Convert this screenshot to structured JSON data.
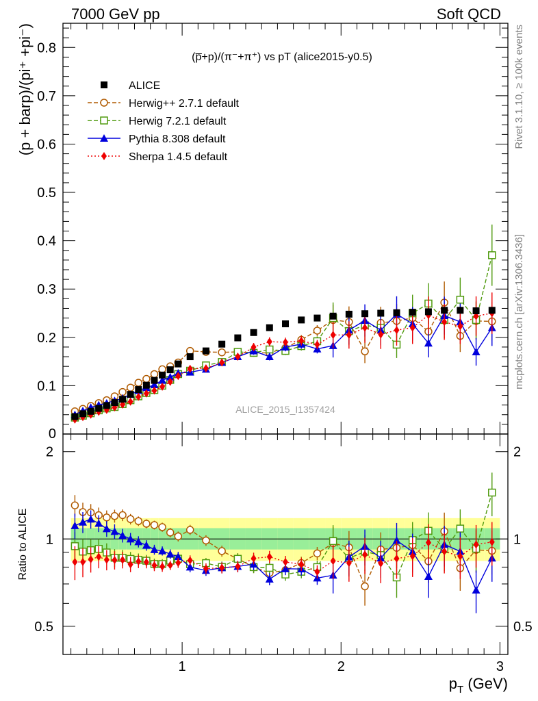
{
  "header": {
    "left": "7000 GeV pp",
    "right": "Soft QCD"
  },
  "side_labels": {
    "rivet": "Rivet 3.1.10, ≥ 100k events",
    "mcplots": "mcplots.cern.ch [arXiv:1306.3436]"
  },
  "chart_data": {
    "type": "scatter",
    "title": "(p̅+p)/(π⁻+π⁺) vs pT (alice2015-y0.5)",
    "watermark": "ALICE_2015_I1357424",
    "xlabel": "p_T (GeV)",
    "ylabel": "(p + barp)/(pi⁺ +pi⁻)",
    "ratio_ylabel": "Ratio to ALICE",
    "xlim": [
      0.25,
      3.05
    ],
    "ylim": [
      0,
      0.85
    ],
    "ratio_ylim": [
      0.4,
      2.3
    ],
    "x_ticks": [
      1,
      2,
      3
    ],
    "y_ticks": [
      0.1,
      0.2,
      0.3,
      0.4,
      0.5,
      0.6,
      0.7,
      0.8
    ],
    "y_tick_labels": [
      "0.1",
      "0.2",
      "0.3",
      "0.4",
      "0.5",
      "0.6",
      "0.7",
      "0.8"
    ],
    "ratio_ticks": [
      0.5,
      1,
      2
    ],
    "ratio_tick_labels": [
      "0.5",
      "1",
      "2"
    ],
    "x_tick_labels": [
      "1",
      "2",
      "3"
    ],
    "y_zero_label": "0",
    "legend_position": "top-left",
    "x": [
      0.325,
      0.375,
      0.425,
      0.475,
      0.525,
      0.575,
      0.625,
      0.675,
      0.725,
      0.775,
      0.825,
      0.875,
      0.925,
      0.975,
      1.05,
      1.15,
      1.25,
      1.35,
      1.45,
      1.55,
      1.65,
      1.75,
      1.85,
      1.95,
      2.05,
      2.15,
      2.25,
      2.35,
      2.45,
      2.55,
      2.65,
      2.75,
      2.85,
      2.95
    ],
    "series": [
      {
        "name": "ALICE",
        "color": "#000000",
        "marker": "square-filled",
        "line": "none",
        "values": [
          0.036,
          0.042,
          0.047,
          0.053,
          0.059,
          0.065,
          0.072,
          0.082,
          0.092,
          0.101,
          0.111,
          0.122,
          0.133,
          0.145,
          0.16,
          0.172,
          0.186,
          0.199,
          0.21,
          0.22,
          0.228,
          0.236,
          0.24,
          0.244,
          0.248,
          0.249,
          0.25,
          0.251,
          0.252,
          0.253,
          0.256,
          0.256,
          0.255,
          0.256
        ]
      },
      {
        "name": "Herwig++ 2.7.1 default",
        "color": "#b05a00",
        "marker": "circle-open",
        "line": "dashed",
        "values": [
          0.047,
          0.052,
          0.058,
          0.064,
          0.07,
          0.078,
          0.087,
          0.096,
          0.106,
          0.114,
          0.124,
          0.134,
          0.14,
          0.148,
          0.172,
          0.17,
          0.169,
          0.17,
          0.168,
          0.168,
          0.178,
          0.195,
          0.214,
          0.236,
          0.232,
          0.171,
          0.23,
          0.234,
          0.24,
          0.212,
          0.272,
          0.203,
          0.234,
          0.233
        ]
      },
      {
        "name": "Herwig 7.2.1 default",
        "color": "#4f9a0d",
        "marker": "square-open",
        "line": "dashed",
        "values": [
          0.034,
          0.038,
          0.043,
          0.049,
          0.053,
          0.056,
          0.062,
          0.07,
          0.078,
          0.085,
          0.091,
          0.1,
          0.112,
          0.124,
          0.131,
          0.142,
          0.149,
          0.17,
          0.168,
          0.175,
          0.172,
          0.182,
          0.192,
          0.24,
          0.213,
          0.225,
          0.22,
          0.185,
          0.25,
          0.27,
          0.236,
          0.278,
          0.236,
          0.37
        ]
      },
      {
        "name": "Pythia 8.308 default",
        "color": "#0000dd",
        "marker": "triangle-filled",
        "line": "solid",
        "values": [
          0.04,
          0.048,
          0.055,
          0.06,
          0.064,
          0.069,
          0.074,
          0.082,
          0.09,
          0.096,
          0.102,
          0.111,
          0.118,
          0.126,
          0.128,
          0.134,
          0.148,
          0.16,
          0.172,
          0.16,
          0.18,
          0.186,
          0.176,
          0.183,
          0.215,
          0.235,
          0.215,
          0.248,
          0.228,
          0.188,
          0.245,
          0.232,
          0.17,
          0.22
        ]
      },
      {
        "name": "Sherpa 1.4.5 default",
        "color": "#ee0000",
        "marker": "diamond-filled",
        "line": "dotted",
        "values": [
          0.03,
          0.035,
          0.04,
          0.046,
          0.05,
          0.055,
          0.061,
          0.067,
          0.077,
          0.084,
          0.09,
          0.098,
          0.108,
          0.12,
          0.135,
          0.136,
          0.148,
          0.16,
          0.18,
          0.191,
          0.19,
          0.193,
          0.185,
          0.205,
          0.205,
          0.22,
          0.206,
          0.215,
          0.22,
          0.246,
          0.232,
          0.223,
          0.244,
          0.25
        ]
      }
    ]
  }
}
